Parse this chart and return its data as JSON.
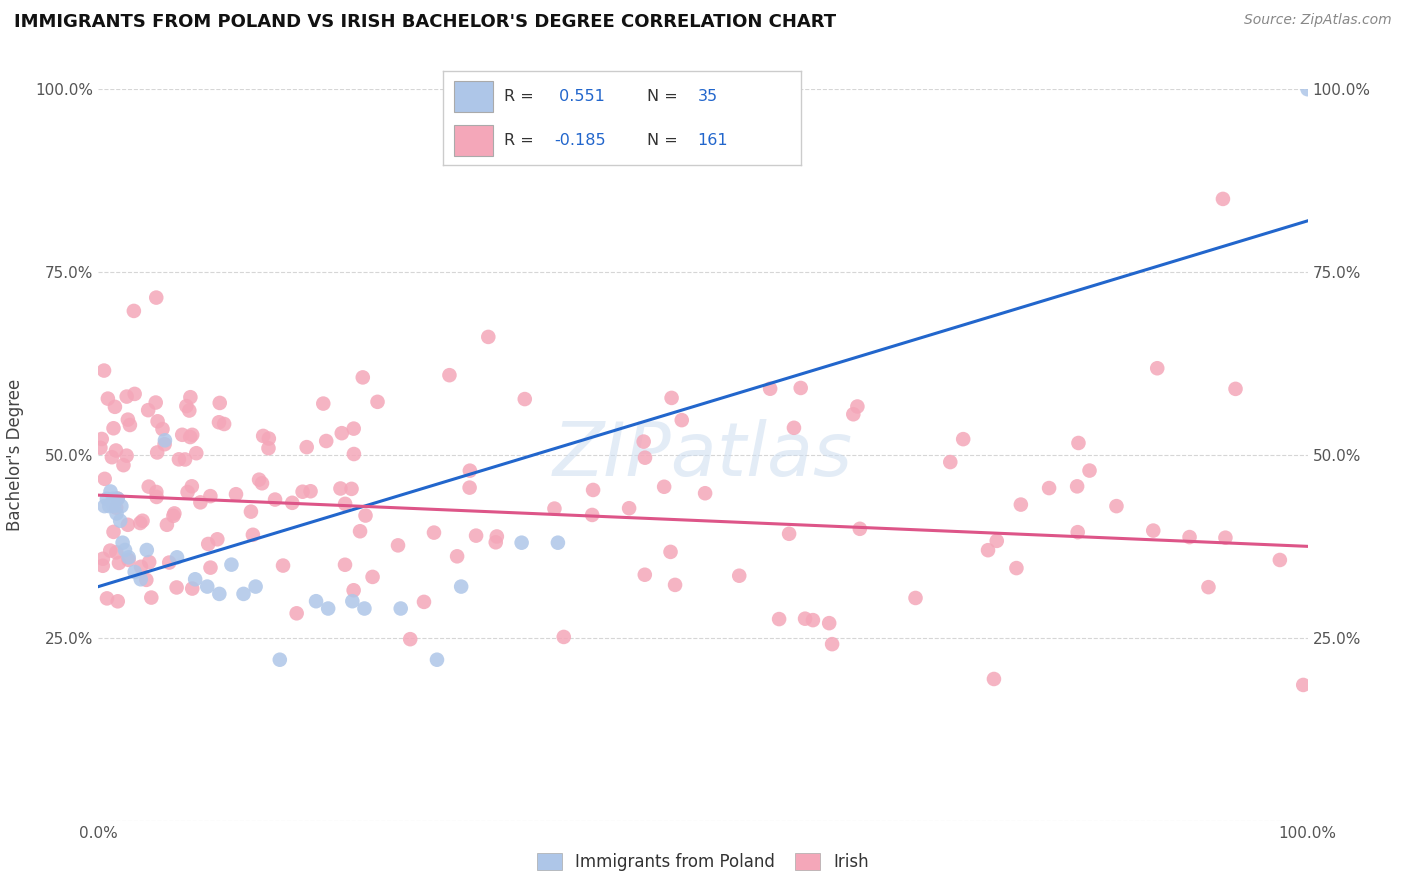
{
  "title": "IMMIGRANTS FROM POLAND VS IRISH BACHELOR'S DEGREE CORRELATION CHART",
  "source": "Source: ZipAtlas.com",
  "ylabel": "Bachelor's Degree",
  "xlim": [
    0,
    1.0
  ],
  "ylim": [
    0,
    1.0
  ],
  "poland_R": 0.551,
  "poland_N": 35,
  "irish_R": -0.185,
  "irish_N": 161,
  "poland_color": "#aec6e8",
  "poland_line_color": "#2266cc",
  "irish_color": "#f4a7b9",
  "irish_line_color": "#dd5588",
  "background_color": "#ffffff",
  "grid_color": "#cccccc",
  "legend_color": "#2266cc",
  "poland_x": [
    0.005,
    0.007,
    0.009,
    0.01,
    0.012,
    0.013,
    0.015,
    0.016,
    0.018,
    0.019,
    0.02,
    0.022,
    0.025,
    0.03,
    0.035,
    0.04,
    0.055,
    0.065,
    0.08,
    0.09,
    0.1,
    0.11,
    0.13,
    0.15,
    0.18,
    0.21,
    0.25,
    0.3,
    0.35,
    0.38,
    0.12,
    0.19,
    0.22,
    0.28,
    1.0
  ],
  "poland_y": [
    0.43,
    0.44,
    0.43,
    0.45,
    0.44,
    0.43,
    0.42,
    0.44,
    0.41,
    0.43,
    0.38,
    0.37,
    0.36,
    0.34,
    0.33,
    0.37,
    0.52,
    0.36,
    0.33,
    0.32,
    0.31,
    0.35,
    0.32,
    0.22,
    0.3,
    0.3,
    0.29,
    0.32,
    0.38,
    0.38,
    0.31,
    0.29,
    0.29,
    0.22,
    1.0
  ],
  "ireland_line_start_x": 0.0,
  "ireland_line_start_y": 0.445,
  "ireland_line_end_x": 1.0,
  "ireland_line_end_y": 0.375,
  "poland_line_start_x": 0.0,
  "poland_line_start_y": 0.32,
  "poland_line_end_x": 1.0,
  "poland_line_end_y": 0.82
}
